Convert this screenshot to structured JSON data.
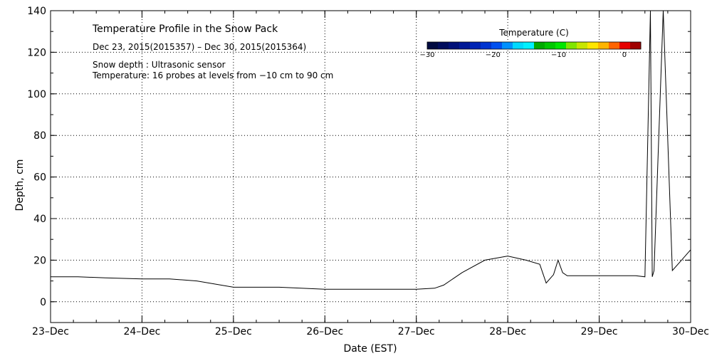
{
  "chart_data": {
    "type": "line",
    "title": "Temperature Profile in the Snow Pack",
    "date_range": "Dec 23, 2015(2015357) – Dec 30, 2015(2015364)",
    "notes": [
      "Snow depth : Ultrasonic sensor",
      "Temperature: 16 probes at levels from −10 cm to 90 cm"
    ],
    "xlabel": "Date (EST)",
    "ylabel": "Depth, cm",
    "xlim": [
      0,
      7
    ],
    "ylim": [
      -10,
      140
    ],
    "grid": true,
    "x_ticks": [
      {
        "value": 0,
        "label": "23–Dec"
      },
      {
        "value": 1,
        "label": "24–Dec"
      },
      {
        "value": 2,
        "label": "25–Dec"
      },
      {
        "value": 3,
        "label": "26–Dec"
      },
      {
        "value": 4,
        "label": "27–Dec"
      },
      {
        "value": 5,
        "label": "28–Dec"
      },
      {
        "value": 6,
        "label": "29–Dec"
      },
      {
        "value": 7,
        "label": "30–Dec"
      }
    ],
    "y_ticks": [
      0,
      20,
      40,
      60,
      80,
      100,
      120,
      140
    ],
    "series": [
      {
        "x_unit": "days since Dec 23",
        "x": [
          0,
          0.3,
          0.6,
          1.0,
          1.3,
          1.6,
          2.0,
          2.5,
          3.0,
          3.5,
          4.0,
          4.2,
          4.3,
          4.5,
          4.75,
          5.0,
          5.2,
          5.35,
          5.42,
          5.5,
          5.55,
          5.6,
          5.65,
          6.0,
          6.3,
          6.4,
          6.5,
          6.56,
          6.58,
          6.6,
          6.7,
          6.8,
          6.9,
          7.0
        ],
        "y": [
          12,
          12,
          11.5,
          11,
          11,
          10,
          7,
          7,
          6,
          6,
          6,
          6.5,
          8,
          14,
          20,
          22,
          20,
          18,
          9,
          13,
          20,
          14,
          12.5,
          12.5,
          12.5,
          12.5,
          12,
          140,
          12,
          15,
          140,
          15,
          20,
          25
        ]
      }
    ],
    "colorbar": {
      "title": "Temperature (C)",
      "tick_labels": [
        {
          "value": -30,
          "label": "−30"
        },
        {
          "value": -20,
          "label": "−20"
        },
        {
          "value": -10,
          "label": "−10"
        },
        {
          "value": 0,
          "label": "0"
        }
      ],
      "range": [
        -30,
        2.5
      ],
      "colors": [
        "#000a40",
        "#000c5c",
        "#001078",
        "#001896",
        "#0024b4",
        "#0034d0",
        "#0050f0",
        "#0090ff",
        "#00d8ff",
        "#00f0ff",
        "#00aa00",
        "#00c800",
        "#00e600",
        "#80e600",
        "#c8e600",
        "#ffe600",
        "#ffb400",
        "#ff6400",
        "#e60000",
        "#a00000"
      ]
    }
  }
}
